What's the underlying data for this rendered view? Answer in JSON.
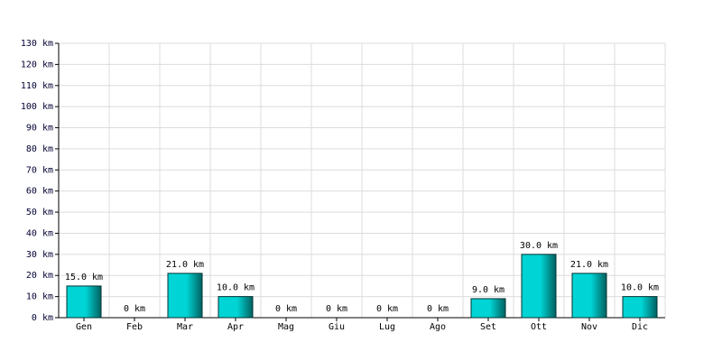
{
  "chart_data": {
    "type": "bar",
    "categories": [
      "Gen",
      "Feb",
      "Mar",
      "Apr",
      "Mag",
      "Giu",
      "Lug",
      "Ago",
      "Set",
      "Ott",
      "Nov",
      "Dic"
    ],
    "values": [
      15,
      0,
      21,
      10,
      0,
      0,
      0,
      0,
      9,
      30,
      21,
      10
    ],
    "value_labels": [
      "15.0 km",
      "0 km",
      "21.0 km",
      "10.0 km",
      "0 km",
      "0 km",
      "0 km",
      "0 km",
      "9.0 km",
      "30.0 km",
      "21.0 km",
      "10.0 km"
    ],
    "color": "#00d4d4",
    "ylim": [
      0,
      130
    ],
    "yticks": [
      {
        "value": 0,
        "label": "0 km"
      },
      {
        "value": 10,
        "label": "10 km"
      },
      {
        "value": 20,
        "label": "20 km"
      },
      {
        "value": 30,
        "label": "30 km"
      },
      {
        "value": 40,
        "label": "40 km"
      },
      {
        "value": 50,
        "label": "50 km"
      },
      {
        "value": 60,
        "label": "60 km"
      },
      {
        "value": 70,
        "label": "70 km"
      },
      {
        "value": 80,
        "label": "80 km"
      },
      {
        "value": 90,
        "label": "90 km"
      },
      {
        "value": 100,
        "label": "100 km"
      },
      {
        "value": 110,
        "label": "110 km"
      },
      {
        "value": 120,
        "label": "120 km"
      },
      {
        "value": 130,
        "label": "130 km"
      }
    ],
    "grid": true
  }
}
